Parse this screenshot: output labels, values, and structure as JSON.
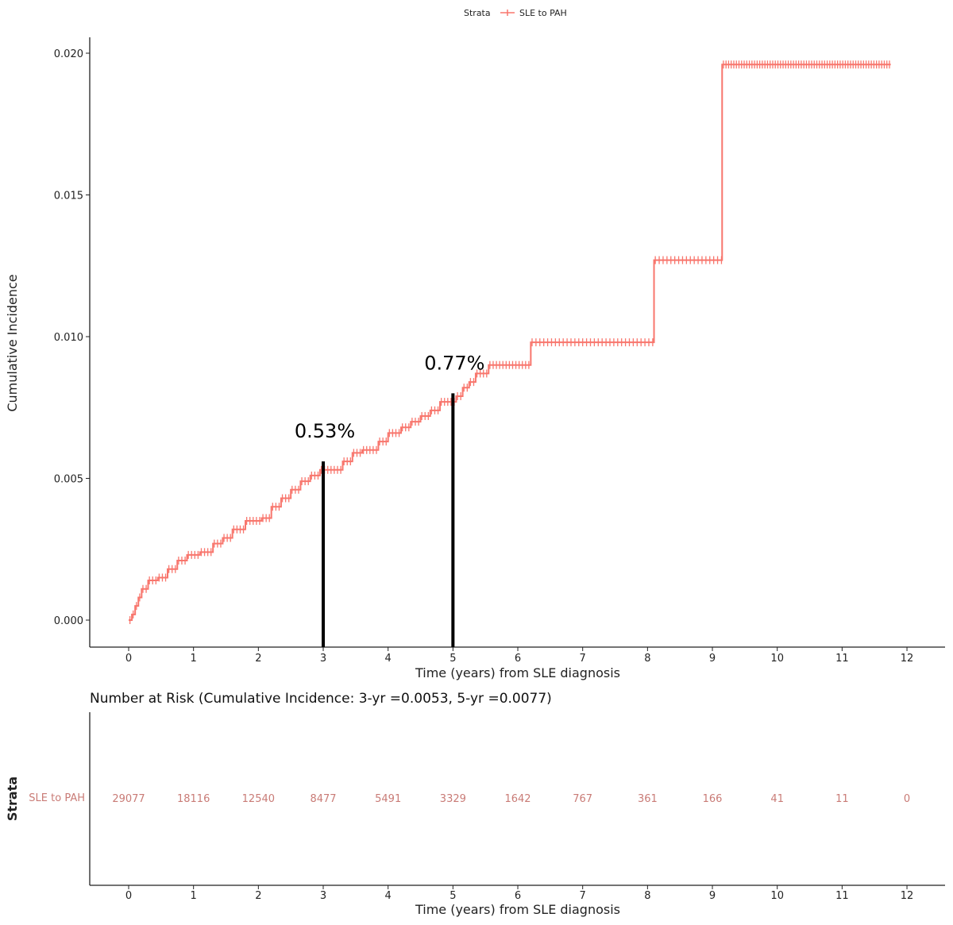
{
  "legend": {
    "title": "Strata",
    "entry": "SLE to PAH"
  },
  "colors": {
    "series": "#F8766D",
    "annotation": "#000000",
    "risk_text": "#c97b76"
  },
  "chart_data": [
    {
      "type": "line",
      "subtype": "step",
      "title": "",
      "xlabel": "Time (years) from SLE diagnosis",
      "ylabel": "Cumulative Incidence",
      "xlim": [
        -0.6,
        12.6
      ],
      "ylim": [
        -0.001,
        0.0205
      ],
      "xticks": [
        "0",
        "1",
        "2",
        "3",
        "4",
        "5",
        "6",
        "7",
        "8",
        "9",
        "10",
        "11",
        "12"
      ],
      "yticks": [
        "0.000",
        "0.005",
        "0.010",
        "0.015",
        "0.020"
      ],
      "grid": false,
      "legend_position": "top",
      "series": [
        {
          "name": "SLE to PAH",
          "x": [
            0,
            0.05,
            0.1,
            0.15,
            0.2,
            0.3,
            0.45,
            0.6,
            0.75,
            0.9,
            1.1,
            1.3,
            1.45,
            1.6,
            1.8,
            2.05,
            2.2,
            2.35,
            2.5,
            2.65,
            2.8,
            2.95,
            3.3,
            3.45,
            3.6,
            3.85,
            4.0,
            4.2,
            4.35,
            4.5,
            4.65,
            4.8,
            5.05,
            5.15,
            5.25,
            5.35,
            5.55,
            6.2,
            8.1,
            9.15,
            11.75
          ],
          "y": [
            0,
            0.0002,
            0.0005,
            0.0008,
            0.0011,
            0.0014,
            0.0015,
            0.0018,
            0.0021,
            0.0023,
            0.0024,
            0.0027,
            0.0029,
            0.0032,
            0.0035,
            0.0036,
            0.004,
            0.0043,
            0.0046,
            0.0049,
            0.0051,
            0.0053,
            0.0056,
            0.0059,
            0.006,
            0.0063,
            0.0066,
            0.0068,
            0.007,
            0.0072,
            0.0074,
            0.0077,
            0.0079,
            0.0082,
            0.0084,
            0.0087,
            0.009,
            0.0098,
            0.0127,
            0.0196,
            0.0196
          ]
        }
      ],
      "annotations": [
        {
          "x": 3,
          "y": 0.0056,
          "label": "0.53%"
        },
        {
          "x": 5,
          "y": 0.008,
          "label": "0.77%"
        }
      ]
    },
    {
      "type": "table",
      "title": "Number at Risk (Cumulative Incidence: 3-yr =0.0053, 5-yr =0.0077)",
      "ylabel": "Strata",
      "row_label": "SLE to PAH",
      "xlabel": "Time (years) from SLE diagnosis",
      "xticks": [
        "0",
        "1",
        "2",
        "3",
        "4",
        "5",
        "6",
        "7",
        "8",
        "9",
        "10",
        "11",
        "12"
      ],
      "values": [
        29077,
        18116,
        12540,
        8477,
        5491,
        3329,
        1642,
        767,
        361,
        166,
        41,
        11,
        0
      ]
    }
  ]
}
